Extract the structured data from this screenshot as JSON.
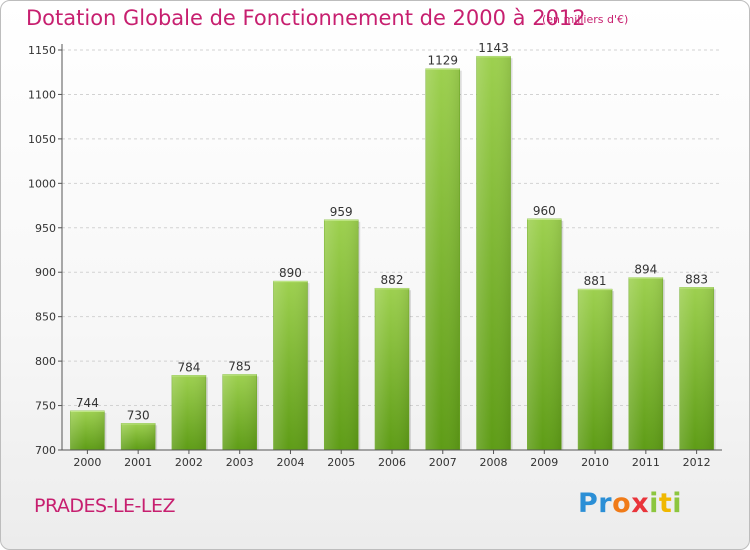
{
  "chart_data": {
    "type": "bar",
    "title": "Dotation Globale de Fonctionnement de 2000 à 2012",
    "subtitle": "(en milliers d'€)",
    "categories": [
      "2000",
      "2001",
      "2002",
      "2003",
      "2004",
      "2005",
      "2006",
      "2007",
      "2008",
      "2009",
      "2010",
      "2011",
      "2012"
    ],
    "values": [
      744,
      730,
      784,
      785,
      890,
      959,
      882,
      1129,
      1143,
      960,
      881,
      894,
      883
    ],
    "xlabel": "",
    "ylabel": "",
    "ylim": [
      700,
      1150
    ],
    "yticks": [
      700,
      750,
      800,
      850,
      900,
      950,
      1000,
      1050,
      1100,
      1150
    ],
    "grid": true,
    "bar_color": "#7fc12f"
  },
  "footer": {
    "commune": "PRADES-LE-LEZ",
    "logo_letters": [
      "P",
      "r",
      "o",
      "x",
      "i",
      "t",
      "i"
    ],
    "logo_colors": [
      "#2b8fd6",
      "#2b8fd6",
      "#f07b18",
      "#e9343b",
      "#8cc63e",
      "#f0b800",
      "#8cc63e"
    ]
  }
}
